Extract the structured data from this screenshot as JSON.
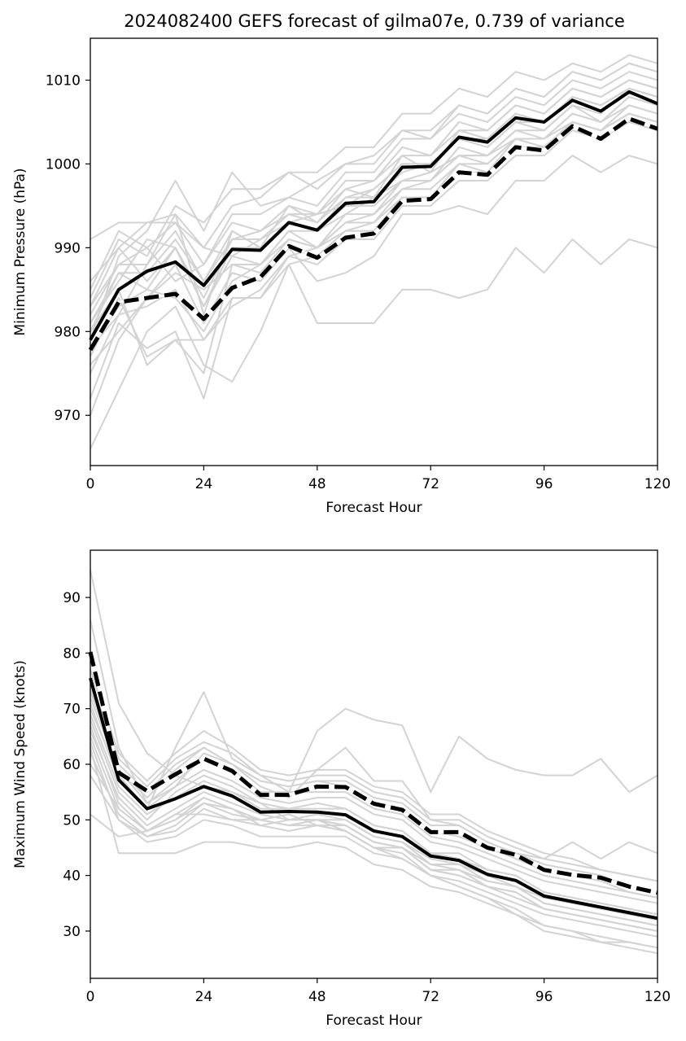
{
  "figure_title": "2024082400 GEFS forecast of gilma07e, 0.739 of variance",
  "colors": {
    "ensemble": "#d3d3d3",
    "mean": "#000000",
    "highlight": "#000000",
    "axes": "#000000"
  },
  "chart_data": [
    {
      "type": "line",
      "title": "2024082400 GEFS forecast of gilma07e, 0.739 of variance",
      "xlabel": "Forecast Hour",
      "ylabel": "Minimum Pressure (hPa)",
      "xlim": [
        0,
        120
      ],
      "ylim": [
        964,
        1015
      ],
      "xticks": [
        0,
        24,
        48,
        72,
        96,
        120
      ],
      "yticks": [
        970,
        980,
        990,
        1000,
        1010
      ],
      "x": [
        0,
        6,
        12,
        18,
        24,
        30,
        36,
        42,
        48,
        54,
        60,
        66,
        72,
        78,
        84,
        90,
        96,
        102,
        108,
        114,
        120
      ],
      "series": [
        {
          "style": "solid",
          "values": [
            979,
            985,
            987.2,
            988.3,
            985.5,
            989.8,
            989.7,
            993,
            992.1,
            995.3,
            995.5,
            999.6,
            999.7,
            1003.2,
            1002.6,
            1005.5,
            1005,
            1007.6,
            1006.3,
            1008.6,
            1007.2
          ]
        },
        {
          "style": "dashed",
          "values": [
            977.8,
            983.5,
            984,
            984.5,
            981.5,
            985.2,
            986.5,
            990.2,
            988.8,
            991.2,
            991.7,
            995.6,
            995.8,
            999,
            998.7,
            1002,
            1001.6,
            1004.5,
            1003,
            1005.4,
            1004.2
          ]
        }
      ],
      "ensemble": [
        [
          966,
          973,
          980,
          983,
          976,
          974,
          980,
          988,
          981,
          981,
          981,
          985,
          985,
          984,
          985,
          990,
          987,
          991,
          988,
          991,
          990
        ],
        [
          991,
          993,
          993,
          993,
          990,
          989,
          991,
          993,
          992,
          994,
          996,
          998,
          999,
          1001,
          1001,
          1003,
          1003,
          1005,
          1004,
          1006,
          1005
        ],
        [
          970,
          979,
          984,
          988,
          981,
          987,
          986,
          990,
          986,
          987,
          989,
          994,
          994,
          995,
          994,
          998,
          998,
          1001,
          999,
          1001,
          1000
        ],
        [
          983,
          990,
          986,
          990,
          983,
          990,
          990,
          995,
          993,
          997,
          996,
          1001,
          999,
          1004,
          1003,
          1006,
          1005,
          1008,
          1007,
          1009,
          1008
        ],
        [
          975,
          982,
          988,
          994,
          982,
          992,
          990,
          993,
          994,
          995,
          997,
          1000,
          1000,
          1003,
          1002,
          1005,
          1004,
          1007,
          1006,
          1009,
          1008
        ],
        [
          980,
          987,
          985,
          984,
          980,
          986,
          988,
          991,
          990,
          993,
          994,
          997,
          998,
          1001,
          1000,
          1003,
          1003,
          1006,
          1005,
          1007,
          1006
        ],
        [
          983,
          988,
          988,
          992,
          986,
          991,
          992,
          994,
          994,
          998,
          998,
          1002,
          1001,
          1004,
          1004,
          1007,
          1006,
          1009,
          1008,
          1010,
          1009
        ],
        [
          972,
          981,
          978,
          980,
          972,
          984,
          984,
          988,
          989,
          992,
          992,
          996,
          996,
          1000,
          999,
          1002,
          1002,
          1005,
          1004,
          1006,
          1005
        ],
        [
          977,
          984,
          977,
          979,
          979,
          983,
          985,
          989,
          990,
          992,
          993,
          996,
          996,
          999,
          999,
          1003,
          1002,
          1005,
          1004,
          1006,
          1005
        ],
        [
          985,
          992,
          990,
          986,
          988,
          994,
          994,
          996,
          995,
          999,
          999,
          1003,
          1003,
          1006,
          1005,
          1008,
          1007,
          1010,
          1009,
          1011,
          1010
        ],
        [
          976,
          980,
          984,
          987,
          985,
          988,
          988,
          992,
          992,
          995,
          995,
          998,
          998,
          1002,
          1001,
          1004,
          1004,
          1007,
          1005,
          1008,
          1007
        ],
        [
          979,
          989,
          992,
          998,
          992,
          999,
          995,
          996,
          998,
          1000,
          1000,
          1004,
          1003,
          1007,
          1006,
          1009,
          1008,
          1011,
          1010,
          1012,
          1011
        ],
        [
          981,
          986,
          991,
          990,
          984,
          991,
          991,
          994,
          993,
          996,
          997,
          1000,
          1000,
          1003,
          1003,
          1006,
          1005,
          1008,
          1007,
          1009,
          1008
        ],
        [
          978,
          982,
          983,
          985,
          979,
          984,
          984,
          989,
          988,
          991,
          991,
          995,
          995,
          998,
          998,
          1001,
          1001,
          1004,
          1003,
          1005,
          1004
        ],
        [
          984,
          991,
          989,
          995,
          993,
          997,
          997,
          999,
          997,
          1000,
          1001,
          1004,
          1004,
          1007,
          1006,
          1009,
          1008,
          1011,
          1010,
          1012,
          1011
        ],
        [
          980,
          985,
          976,
          979,
          975,
          988,
          987,
          991,
          990,
          993,
          993,
          997,
          997,
          1000,
          1000,
          1003,
          1002,
          1005,
          1004,
          1007,
          1006
        ],
        [
          982,
          988,
          990,
          993,
          988,
          993,
          992,
          995,
          994,
          997,
          998,
          1001,
          1001,
          1005,
          1004,
          1007,
          1006,
          1009,
          1008,
          1010,
          1009
        ],
        [
          986,
          990,
          993,
          994,
          990,
          995,
          996,
          999,
          999,
          1002,
          1002,
          1006,
          1006,
          1009,
          1008,
          1011,
          1010,
          1012,
          1011,
          1013,
          1012
        ],
        [
          978,
          983,
          985,
          990,
          983,
          989,
          988,
          992,
          990,
          994,
          994,
          998,
          998,
          1001,
          1001,
          1004,
          1003,
          1006,
          1005,
          1008,
          1007
        ],
        [
          981,
          987,
          987,
          991,
          986,
          992,
          990,
          993,
          992,
          996,
          996,
          999,
          1000,
          1003,
          1002,
          1005,
          1005,
          1008,
          1007,
          1009,
          1008
        ]
      ]
    },
    {
      "type": "line",
      "title": "",
      "xlabel": "Forecast Hour",
      "ylabel": "Maximum Wind Speed (knots)",
      "xlim": [
        0,
        120
      ],
      "ylim": [
        21.5,
        98.5
      ],
      "xticks": [
        0,
        24,
        48,
        72,
        96,
        120
      ],
      "yticks": [
        30,
        40,
        50,
        60,
        70,
        80,
        90
      ],
      "x": [
        0,
        6,
        12,
        18,
        24,
        30,
        36,
        42,
        48,
        54,
        60,
        66,
        72,
        78,
        84,
        90,
        96,
        102,
        108,
        114,
        120
      ],
      "series": [
        {
          "style": "solid",
          "values": [
            75.5,
            57.2,
            52,
            53.8,
            56,
            54.3,
            51.4,
            51.5,
            51.4,
            50.9,
            48,
            47,
            43.5,
            42.7,
            40.2,
            39.1,
            36.3,
            35.3,
            34.3,
            33.3,
            32.3
          ]
        },
        {
          "style": "dashed",
          "values": [
            80.2,
            58.5,
            55.2,
            58.2,
            61,
            58.8,
            54.5,
            54.5,
            56,
            55.9,
            52.9,
            51.8,
            47.8,
            47.8,
            45,
            43.7,
            41,
            40.1,
            39.6,
            38,
            36.9
          ]
        }
      ],
      "ensemble": [
        [
          51,
          47,
          48,
          51,
          51,
          50,
          50,
          51,
          49,
          48,
          45,
          44,
          40,
          38,
          36,
          34,
          31,
          30,
          28,
          28,
          27
        ],
        [
          95,
          71,
          62,
          58,
          56,
          55,
          53,
          50,
          50,
          48,
          45,
          43,
          40,
          38,
          36,
          33,
          30,
          29,
          28,
          27,
          26
        ],
        [
          70,
          58,
          52,
          63,
          73,
          61,
          58,
          55,
          66,
          70,
          68,
          67,
          55,
          65,
          61,
          59,
          58,
          58,
          61,
          55,
          58
        ],
        [
          86,
          63,
          53,
          56,
          62,
          60,
          56,
          54,
          59,
          63,
          57,
          57,
          50,
          49,
          46,
          44,
          43,
          46,
          43,
          46,
          44
        ],
        [
          60,
          52,
          48,
          50,
          53,
          51,
          50,
          49,
          50,
          49,
          46,
          45,
          42,
          41,
          39,
          38,
          35,
          34,
          33,
          32,
          31
        ],
        [
          68,
          55,
          50,
          55,
          58,
          56,
          53,
          52,
          53,
          52,
          49,
          48,
          44,
          44,
          41,
          40,
          37,
          36,
          35,
          34,
          33
        ],
        [
          64,
          50,
          47,
          48,
          52,
          50,
          49,
          50,
          50,
          50,
          47,
          46,
          43,
          42,
          40,
          38,
          36,
          35,
          34,
          33,
          32
        ],
        [
          72,
          59,
          54,
          59,
          63,
          60,
          57,
          56,
          57,
          57,
          54,
          53,
          49,
          49,
          46,
          44,
          42,
          41,
          40,
          38,
          37
        ],
        [
          66,
          54,
          49,
          52,
          55,
          53,
          51,
          50,
          51,
          50,
          47,
          46,
          42,
          42,
          39,
          38,
          35,
          34,
          33,
          32,
          31
        ],
        [
          62,
          51,
          47,
          49,
          53,
          52,
          49,
          48,
          49,
          48,
          45,
          45,
          41,
          40,
          38,
          37,
          34,
          33,
          32,
          31,
          30
        ],
        [
          75,
          61,
          56,
          61,
          64,
          62,
          58,
          57,
          58,
          58,
          55,
          54,
          50,
          50,
          47,
          45,
          43,
          42,
          41,
          40,
          39
        ],
        [
          69,
          56,
          51,
          54,
          57,
          55,
          52,
          52,
          52,
          52,
          49,
          48,
          44,
          43,
          41,
          40,
          37,
          36,
          35,
          34,
          33
        ],
        [
          58,
          50,
          46,
          47,
          50,
          49,
          47,
          47,
          47,
          47,
          44,
          43,
          40,
          39,
          37,
          35,
          33,
          32,
          31,
          30,
          29
        ],
        [
          73,
          60,
          55,
          60,
          63,
          60,
          57,
          56,
          57,
          56,
          53,
          52,
          48,
          47,
          45,
          43,
          41,
          40,
          39,
          37,
          36
        ],
        [
          67,
          53,
          48,
          51,
          54,
          52,
          50,
          49,
          50,
          49,
          46,
          45,
          41,
          41,
          38,
          37,
          34,
          33,
          32,
          31,
          30
        ],
        [
          77,
          62,
          57,
          62,
          66,
          63,
          59,
          58,
          59,
          59,
          56,
          55,
          51,
          51,
          48,
          46,
          44,
          43,
          41,
          40,
          39
        ],
        [
          65,
          52,
          48,
          50,
          54,
          52,
          50,
          49,
          49,
          49,
          46,
          45,
          41,
          40,
          38,
          36,
          34,
          33,
          32,
          31,
          30
        ],
        [
          71,
          57,
          52,
          56,
          59,
          57,
          54,
          53,
          54,
          54,
          51,
          50,
          46,
          45,
          43,
          41,
          39,
          38,
          37,
          36,
          35
        ],
        [
          63,
          44,
          44,
          44,
          46,
          46,
          45,
          45,
          46,
          45,
          42,
          41,
          38,
          37,
          35,
          33,
          31,
          30,
          29,
          28,
          27
        ],
        [
          74,
          59,
          53,
          57,
          61,
          59,
          55,
          55,
          55,
          55,
          52,
          51,
          47,
          46,
          44,
          42,
          40,
          39,
          38,
          37,
          36
        ]
      ]
    }
  ]
}
